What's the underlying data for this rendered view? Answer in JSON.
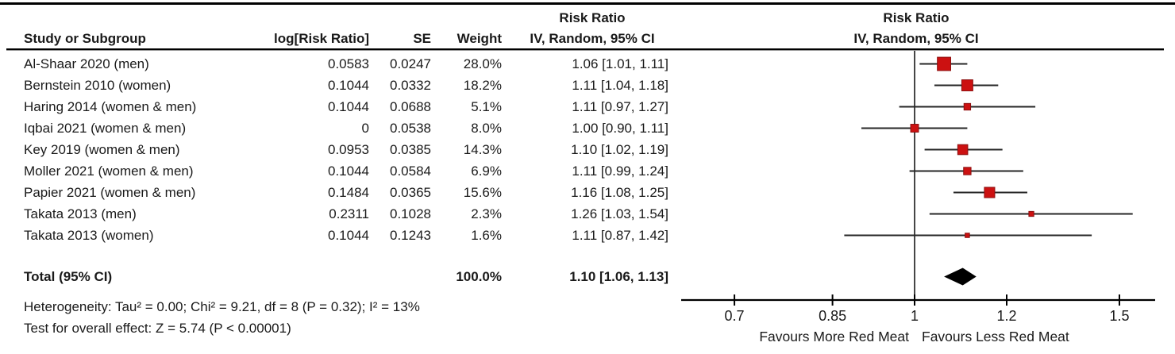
{
  "header": {
    "study": "Study or Subgroup",
    "log_rr": "log[Risk Ratio]",
    "se": "SE",
    "weight": "Weight",
    "stat_col_line1": "Risk Ratio",
    "stat_col_line2": "IV, Random, 95% CI",
    "plot_col_line1": "Risk Ratio",
    "plot_col_line2": "IV, Random, 95% CI"
  },
  "chart_data": {
    "type": "forest",
    "x_scale": "log",
    "axis_range": [
      0.63,
      1.61
    ],
    "axis_ticks": [
      0.7,
      0.85,
      1,
      1.2,
      1.5
    ],
    "axis_tick_labels": [
      "0.7",
      "0.85",
      "1",
      "1.2",
      "1.5"
    ],
    "favours_left": "Favours More Red Meat",
    "favours_right": "Favours Less Red Meat",
    "marker_color": "#CC1111",
    "marker_border": "#8B0F0F",
    "line_color": "#262626",
    "axis_color": "#000000",
    "diamond_color": "#000000",
    "studies": [
      {
        "label": "Al-Shaar 2020 (men)",
        "log_rr": "0.0583",
        "se": "0.0247",
        "weight": 28.0,
        "weight_text": "28.0%",
        "rr": 1.06,
        "ci_low": 1.01,
        "ci_high": 1.11,
        "ci_text": "1.06 [1.01, 1.11]"
      },
      {
        "label": "Bernstein 2010 (women)",
        "log_rr": "0.1044",
        "se": "0.0332",
        "weight": 18.2,
        "weight_text": "18.2%",
        "rr": 1.11,
        "ci_low": 1.04,
        "ci_high": 1.18,
        "ci_text": "1.11 [1.04, 1.18]"
      },
      {
        "label": "Haring 2014 (women & men)",
        "log_rr": "0.1044",
        "se": "0.0688",
        "weight": 5.1,
        "weight_text": "5.1%",
        "rr": 1.11,
        "ci_low": 0.97,
        "ci_high": 1.27,
        "ci_text": "1.11 [0.97, 1.27]"
      },
      {
        "label": "Iqbai 2021 (women & men)",
        "log_rr": "0",
        "se": "0.0538",
        "weight": 8.0,
        "weight_text": "8.0%",
        "rr": 1.0,
        "ci_low": 0.9,
        "ci_high": 1.11,
        "ci_text": "1.00 [0.90, 1.11]"
      },
      {
        "label": "Key 2019 (women & men)",
        "log_rr": "0.0953",
        "se": "0.0385",
        "weight": 14.3,
        "weight_text": "14.3%",
        "rr": 1.1,
        "ci_low": 1.02,
        "ci_high": 1.19,
        "ci_text": "1.10 [1.02, 1.19]"
      },
      {
        "label": "Moller 2021 (women & men)",
        "log_rr": "0.1044",
        "se": "0.0584",
        "weight": 6.9,
        "weight_text": "6.9%",
        "rr": 1.11,
        "ci_low": 0.99,
        "ci_high": 1.24,
        "ci_text": "1.11 [0.99, 1.24]"
      },
      {
        "label": "Papier 2021 (women & men)",
        "log_rr": "0.1484",
        "se": "0.0365",
        "weight": 15.6,
        "weight_text": "15.6%",
        "rr": 1.16,
        "ci_low": 1.08,
        "ci_high": 1.25,
        "ci_text": "1.16 [1.08, 1.25]"
      },
      {
        "label": "Takata 2013 (men)",
        "log_rr": "0.2311",
        "se": "0.1028",
        "weight": 2.3,
        "weight_text": "2.3%",
        "rr": 1.26,
        "ci_low": 1.03,
        "ci_high": 1.54,
        "ci_text": "1.26 [1.03, 1.54]"
      },
      {
        "label": "Takata 2013 (women)",
        "log_rr": "0.1044",
        "se": "0.1243",
        "weight": 1.6,
        "weight_text": "1.6%",
        "rr": 1.11,
        "ci_low": 0.87,
        "ci_high": 1.42,
        "ci_text": "1.11 [0.87, 1.42]"
      }
    ],
    "total": {
      "label": "Total (95% CI)",
      "weight_text": "100.0%",
      "rr": 1.1,
      "ci_low": 1.06,
      "ci_high": 1.13,
      "ci_text": "1.10 [1.06, 1.13]"
    }
  },
  "footer": {
    "heterogeneity": "Heterogeneity: Tau² = 0.00; Chi² = 9.21, df = 8 (P = 0.32); I² = 13%",
    "overall_effect": "Test for overall effect: Z = 5.74 (P < 0.00001)"
  }
}
